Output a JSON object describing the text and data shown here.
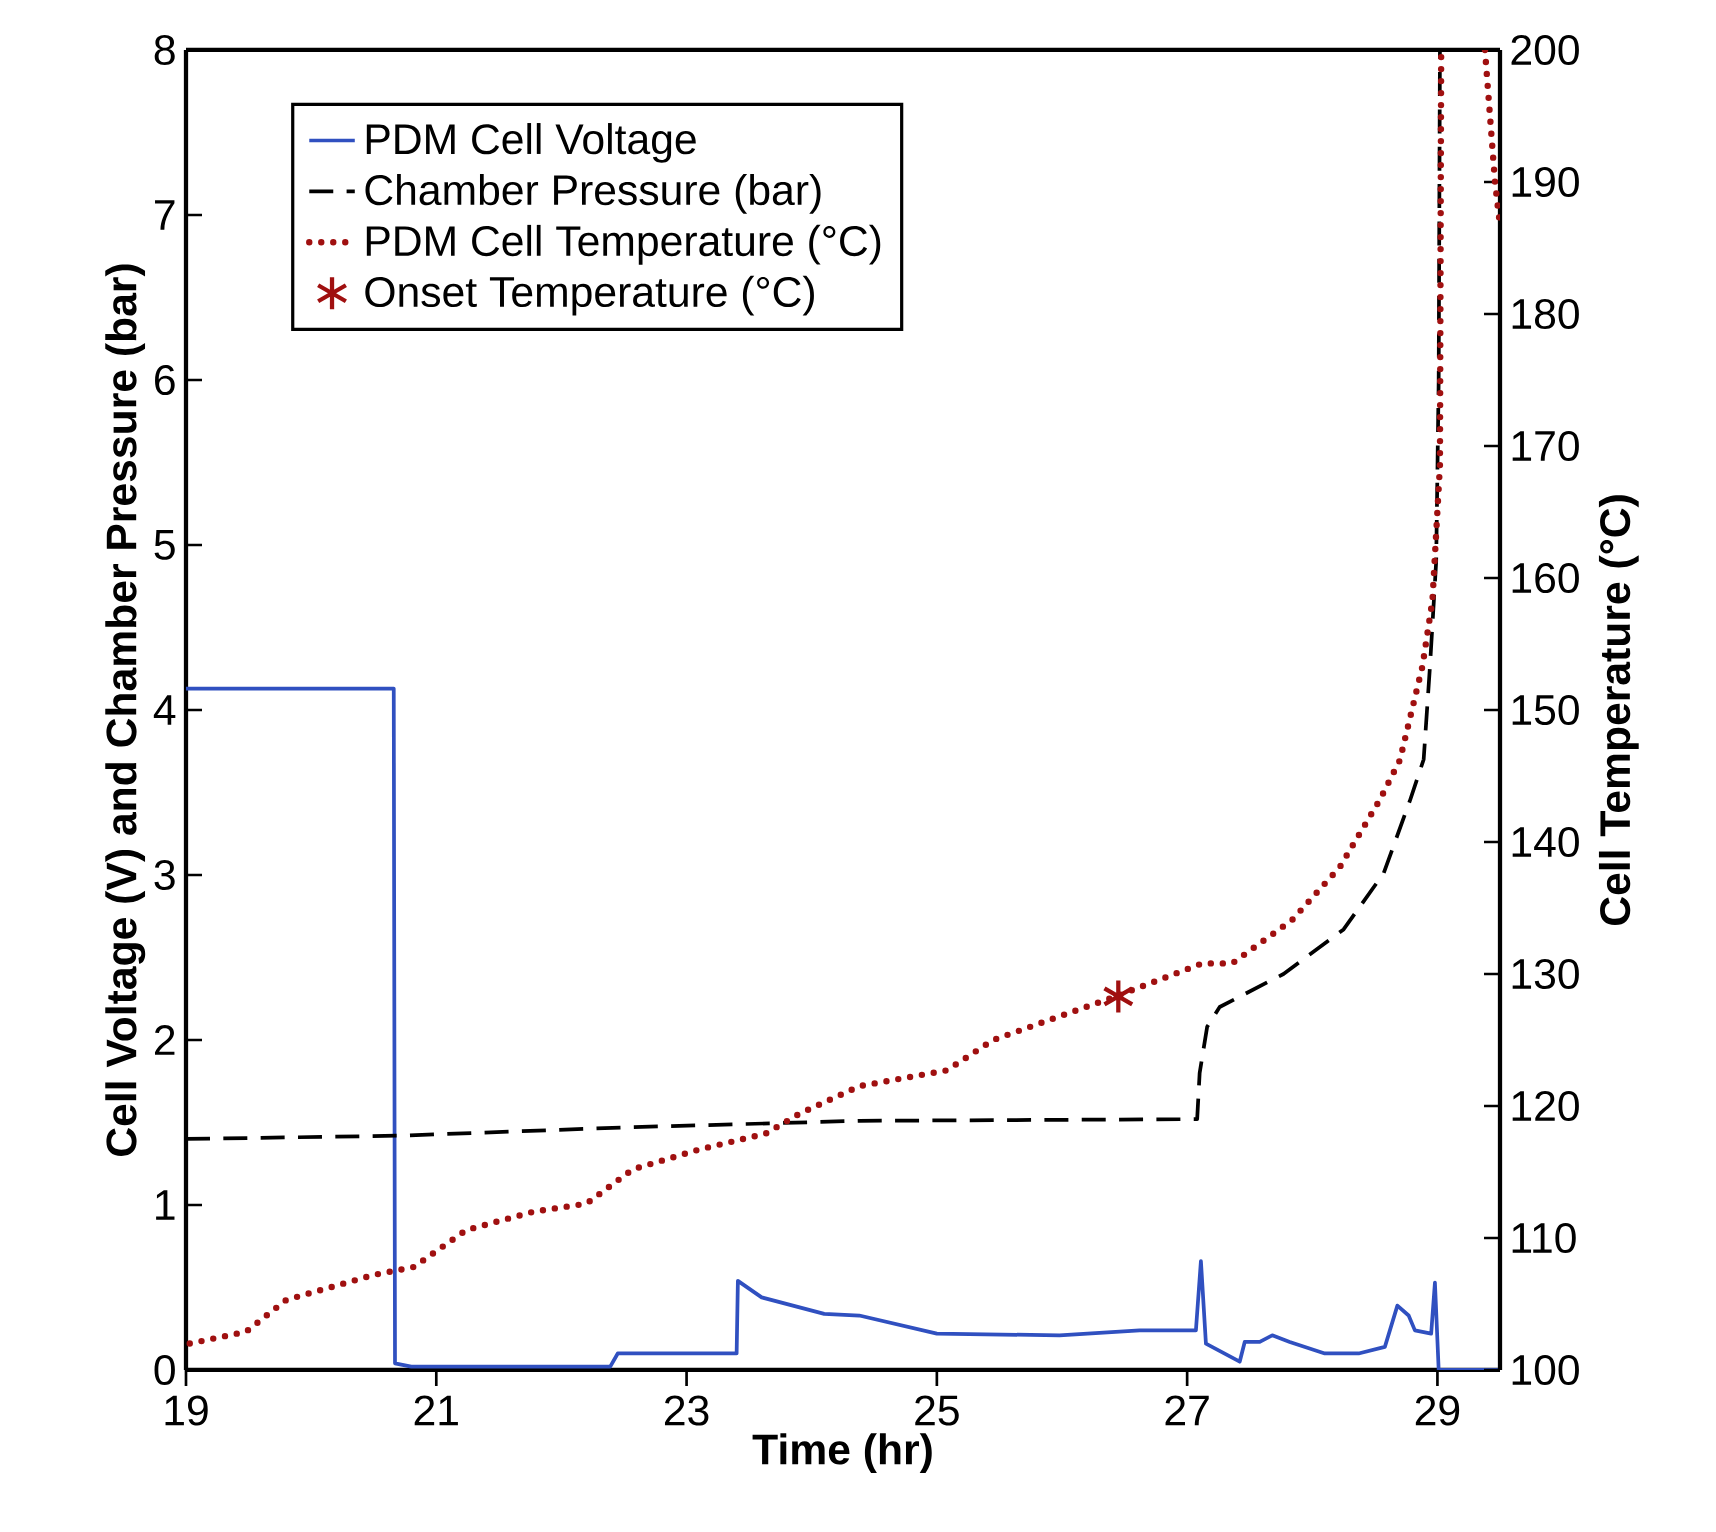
{
  "chart_data": {
    "type": "line",
    "xlabel": "Time (hr)",
    "ylabel": "Cell Voltage (V) and Chamber Pressure (bar)",
    "y2label": "Cell Temperature (°C)",
    "xlim": [
      19,
      29.5
    ],
    "xticks": [
      19,
      21,
      23,
      25,
      27,
      29
    ],
    "ylim": [
      0,
      8
    ],
    "yticks": [
      0,
      1,
      2,
      3,
      4,
      5,
      6,
      7,
      8
    ],
    "y2lim": [
      100,
      200
    ],
    "y2ticks": [
      100,
      110,
      120,
      130,
      140,
      150,
      160,
      170,
      180,
      190,
      200
    ],
    "grid": false,
    "legend": "top left",
    "series": [
      {
        "name": "PDM Cell Voltage",
        "color": "#3050c0",
        "line_style": "solid",
        "marker": "none",
        "x": [
          19,
          20.66,
          20.67,
          20.8,
          22.39,
          22.45,
          23.4,
          23.41,
          23.6,
          24.1,
          24.38,
          25.0,
          25.98,
          26.62,
          27.07,
          27.11,
          27.15,
          27.42,
          27.46,
          27.58,
          27.68,
          27.82,
          28.1,
          28.37,
          28.58,
          28.68,
          28.77,
          28.82,
          28.95,
          28.98,
          29.01,
          29.5
        ],
        "values": [
          4.13,
          4.13,
          0.04,
          0.02,
          0.02,
          0.1,
          0.1,
          0.54,
          0.44,
          0.34,
          0.33,
          0.22,
          0.21,
          0.24,
          0.24,
          0.66,
          0.16,
          0.05,
          0.17,
          0.17,
          0.21,
          0.17,
          0.1,
          0.1,
          0.14,
          0.39,
          0.33,
          0.24,
          0.22,
          0.53,
          0,
          0
        ]
      },
      {
        "name": "Chamber Pressure (bar)",
        "color": "#000000",
        "line_style": "dashed",
        "marker": "none",
        "x": [
          19,
          20.71,
          22.5,
          24.38,
          27.08,
          27.1,
          27.16,
          27.26,
          27.77,
          28.25,
          28.57,
          28.78,
          28.89,
          28.94,
          28.99,
          29.01,
          29.02
        ],
        "values": [
          1.4,
          1.42,
          1.47,
          1.51,
          1.52,
          1.8,
          2.08,
          2.2,
          2.4,
          2.67,
          3.01,
          3.45,
          3.7,
          4.26,
          4.9,
          6,
          8
        ]
      },
      {
        "name": "PDM Cell Temperature (°C)",
        "color": "#a01010",
        "line_style": "dotted",
        "marker": "none",
        "axis": "y2",
        "x": [
          19.03,
          19.48,
          19.8,
          20.5,
          20.82,
          21.24,
          21.78,
          22.2,
          22.57,
          23.1,
          23.63,
          23.9,
          24.38,
          25.08,
          25.45,
          26.43,
          27.12,
          27.36,
          27.84,
          28.22,
          28.54,
          28.7,
          28.88,
          28.96,
          29.02,
          29.03,
          29.2,
          29.38,
          29.42,
          29.46,
          29.5
        ],
        "values": [
          102,
          102.9,
          105.3,
          107.2,
          107.8,
          110.6,
          112,
          112.6,
          115.2,
          116.7,
          117.9,
          119.4,
          121.5,
          122.7,
          125,
          128.3,
          130.8,
          130.8,
          134.1,
          138.1,
          143.2,
          146.2,
          153.3,
          158.3,
          168.5,
          200,
          null,
          200,
          195,
          190,
          186.7
        ]
      },
      {
        "name": "Onset Temperature (°C)",
        "type": "scatter",
        "color": "#a01010",
        "marker": "cross",
        "axis": "y2",
        "x": [
          26.45
        ],
        "values": [
          128.3
        ]
      }
    ]
  }
}
